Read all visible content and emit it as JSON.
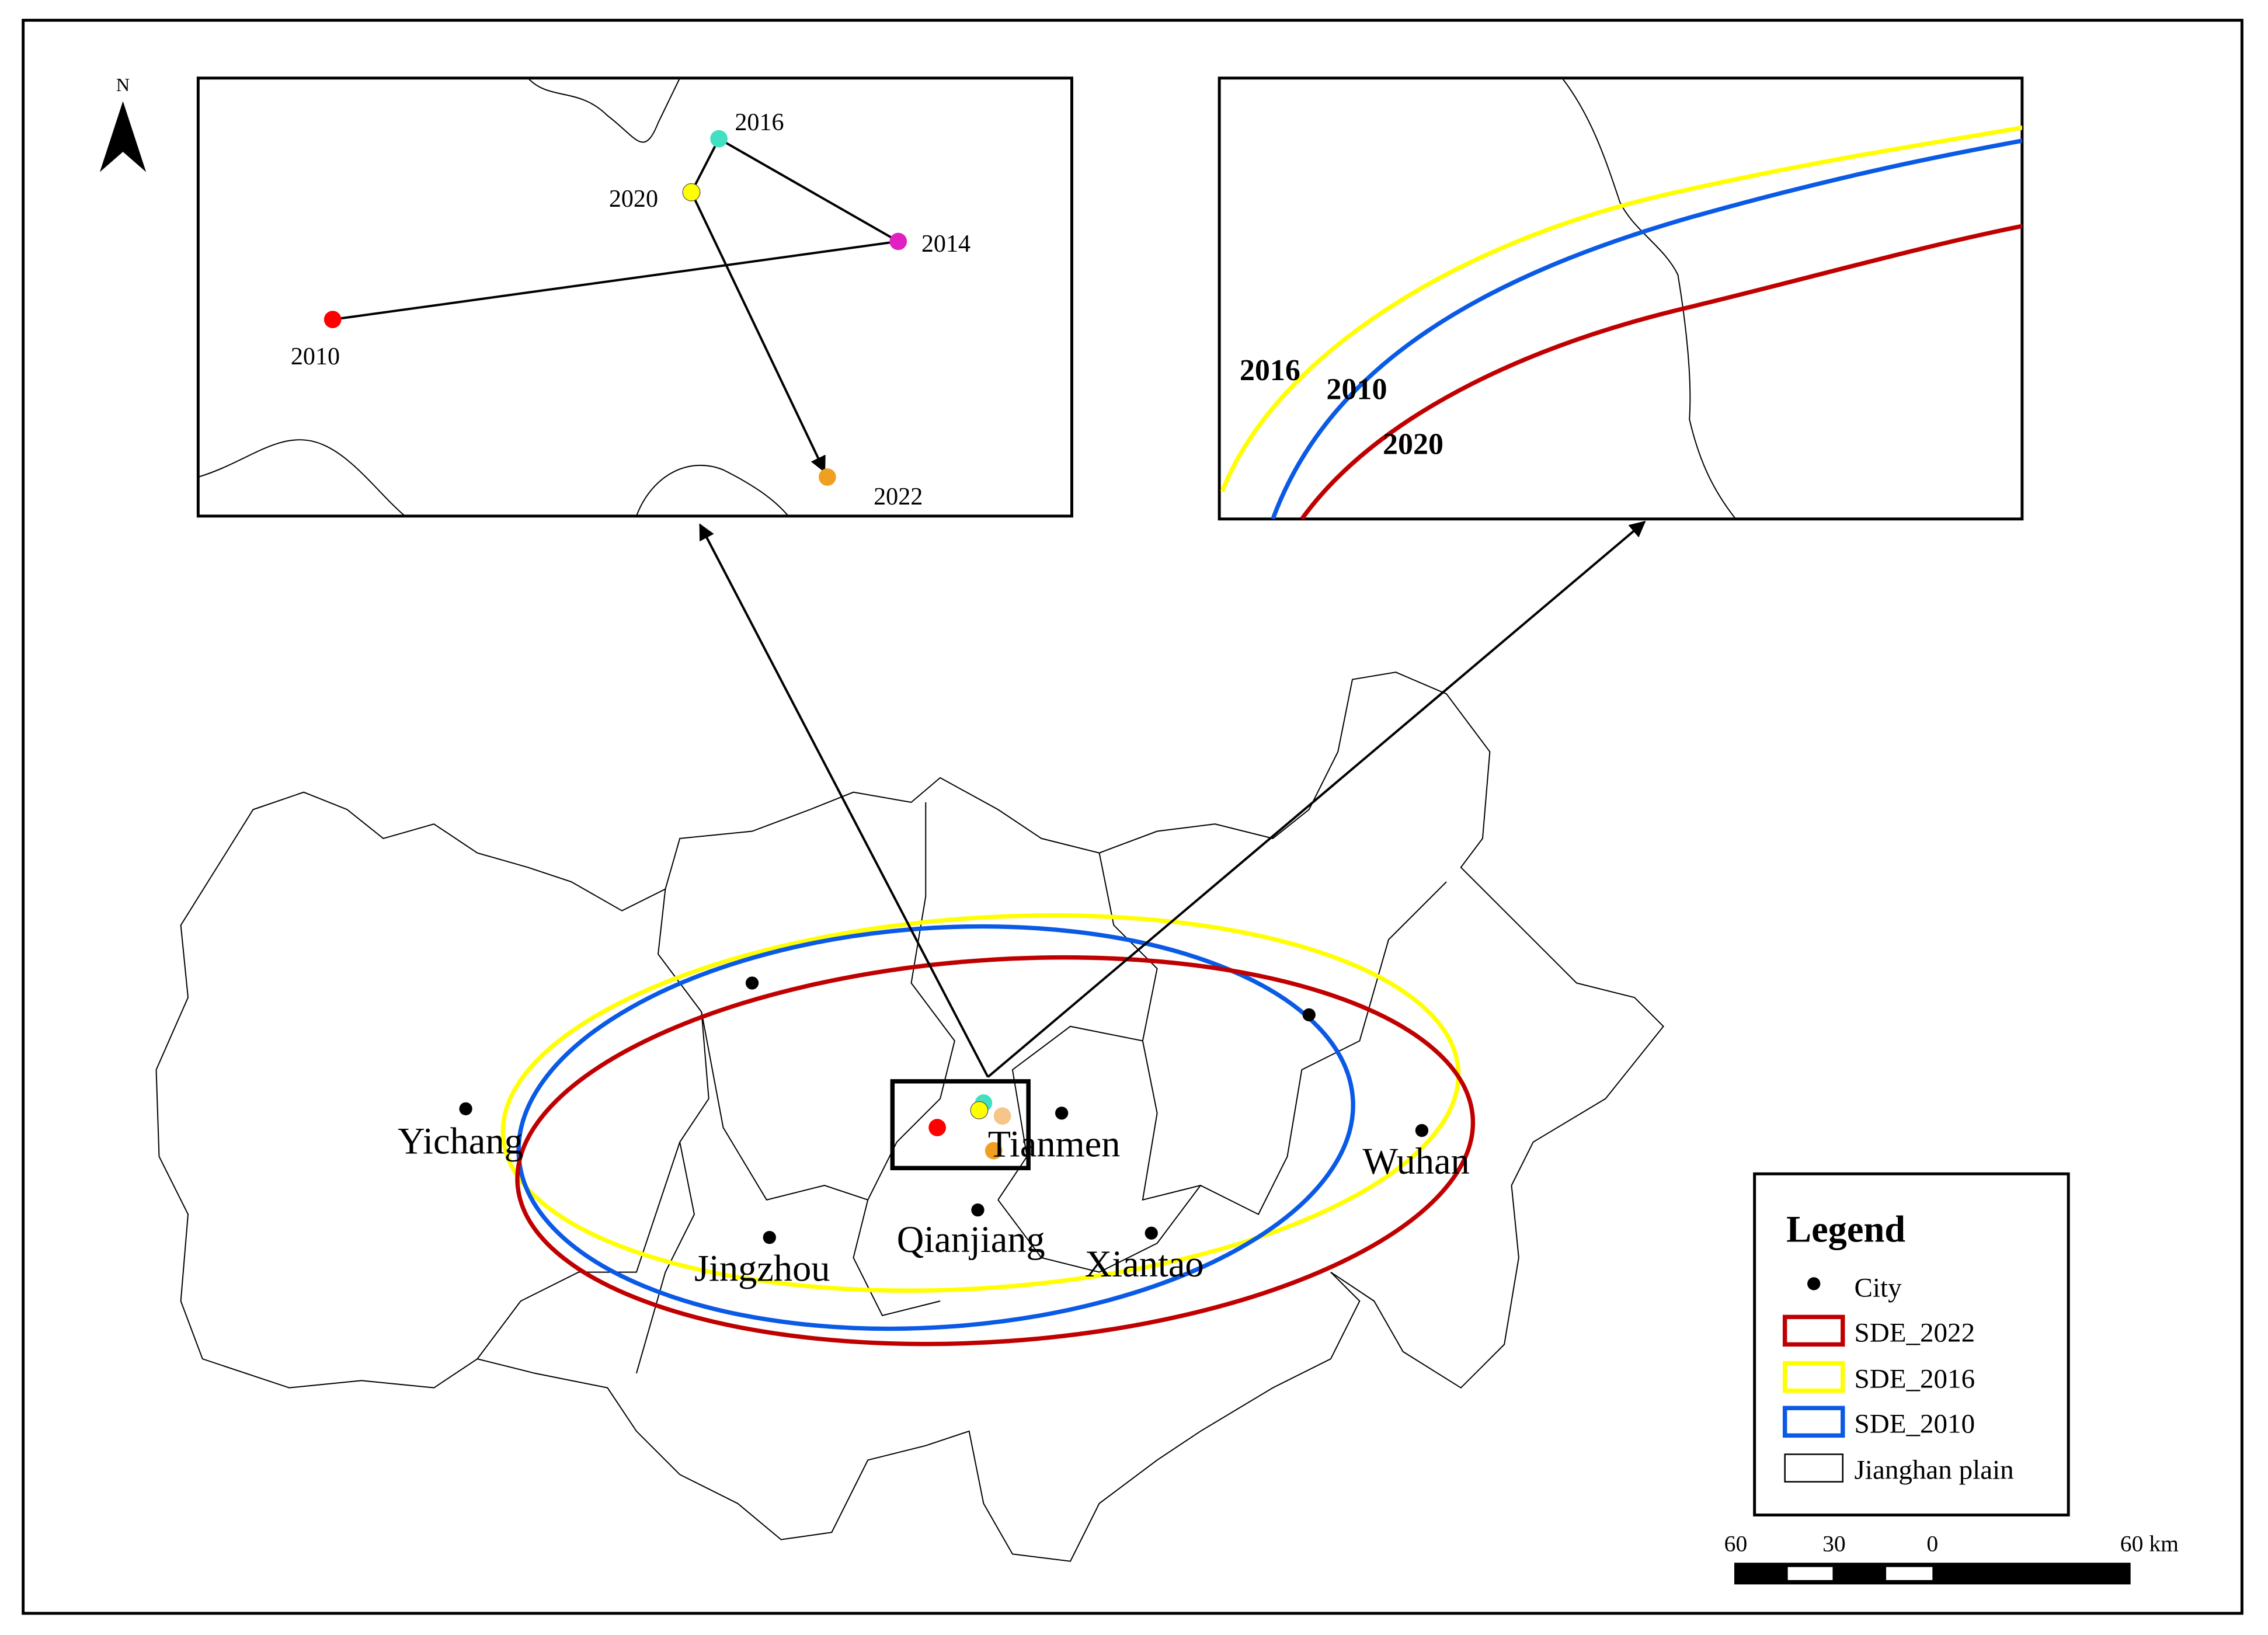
{
  "north_arrow": {
    "label": "N"
  },
  "inset_trajectory": {
    "labels": [
      "2010",
      "2014",
      "2016",
      "2020",
      "2022"
    ]
  },
  "inset_ellipses": {
    "labels": [
      "2016",
      "2010",
      "2020"
    ]
  },
  "cities": [
    "Yichang",
    "Jingzhou",
    "Qianjiang",
    "Tianmen",
    "Xiantao",
    "Wuhan"
  ],
  "legend": {
    "title": "Legend",
    "items": [
      "City",
      "SDE_2022",
      "SDE_2016",
      "SDE_2010",
      "Jianghan plain"
    ]
  },
  "scale_bar": {
    "labels": [
      "60",
      "30",
      "0",
      "60 km"
    ]
  }
}
